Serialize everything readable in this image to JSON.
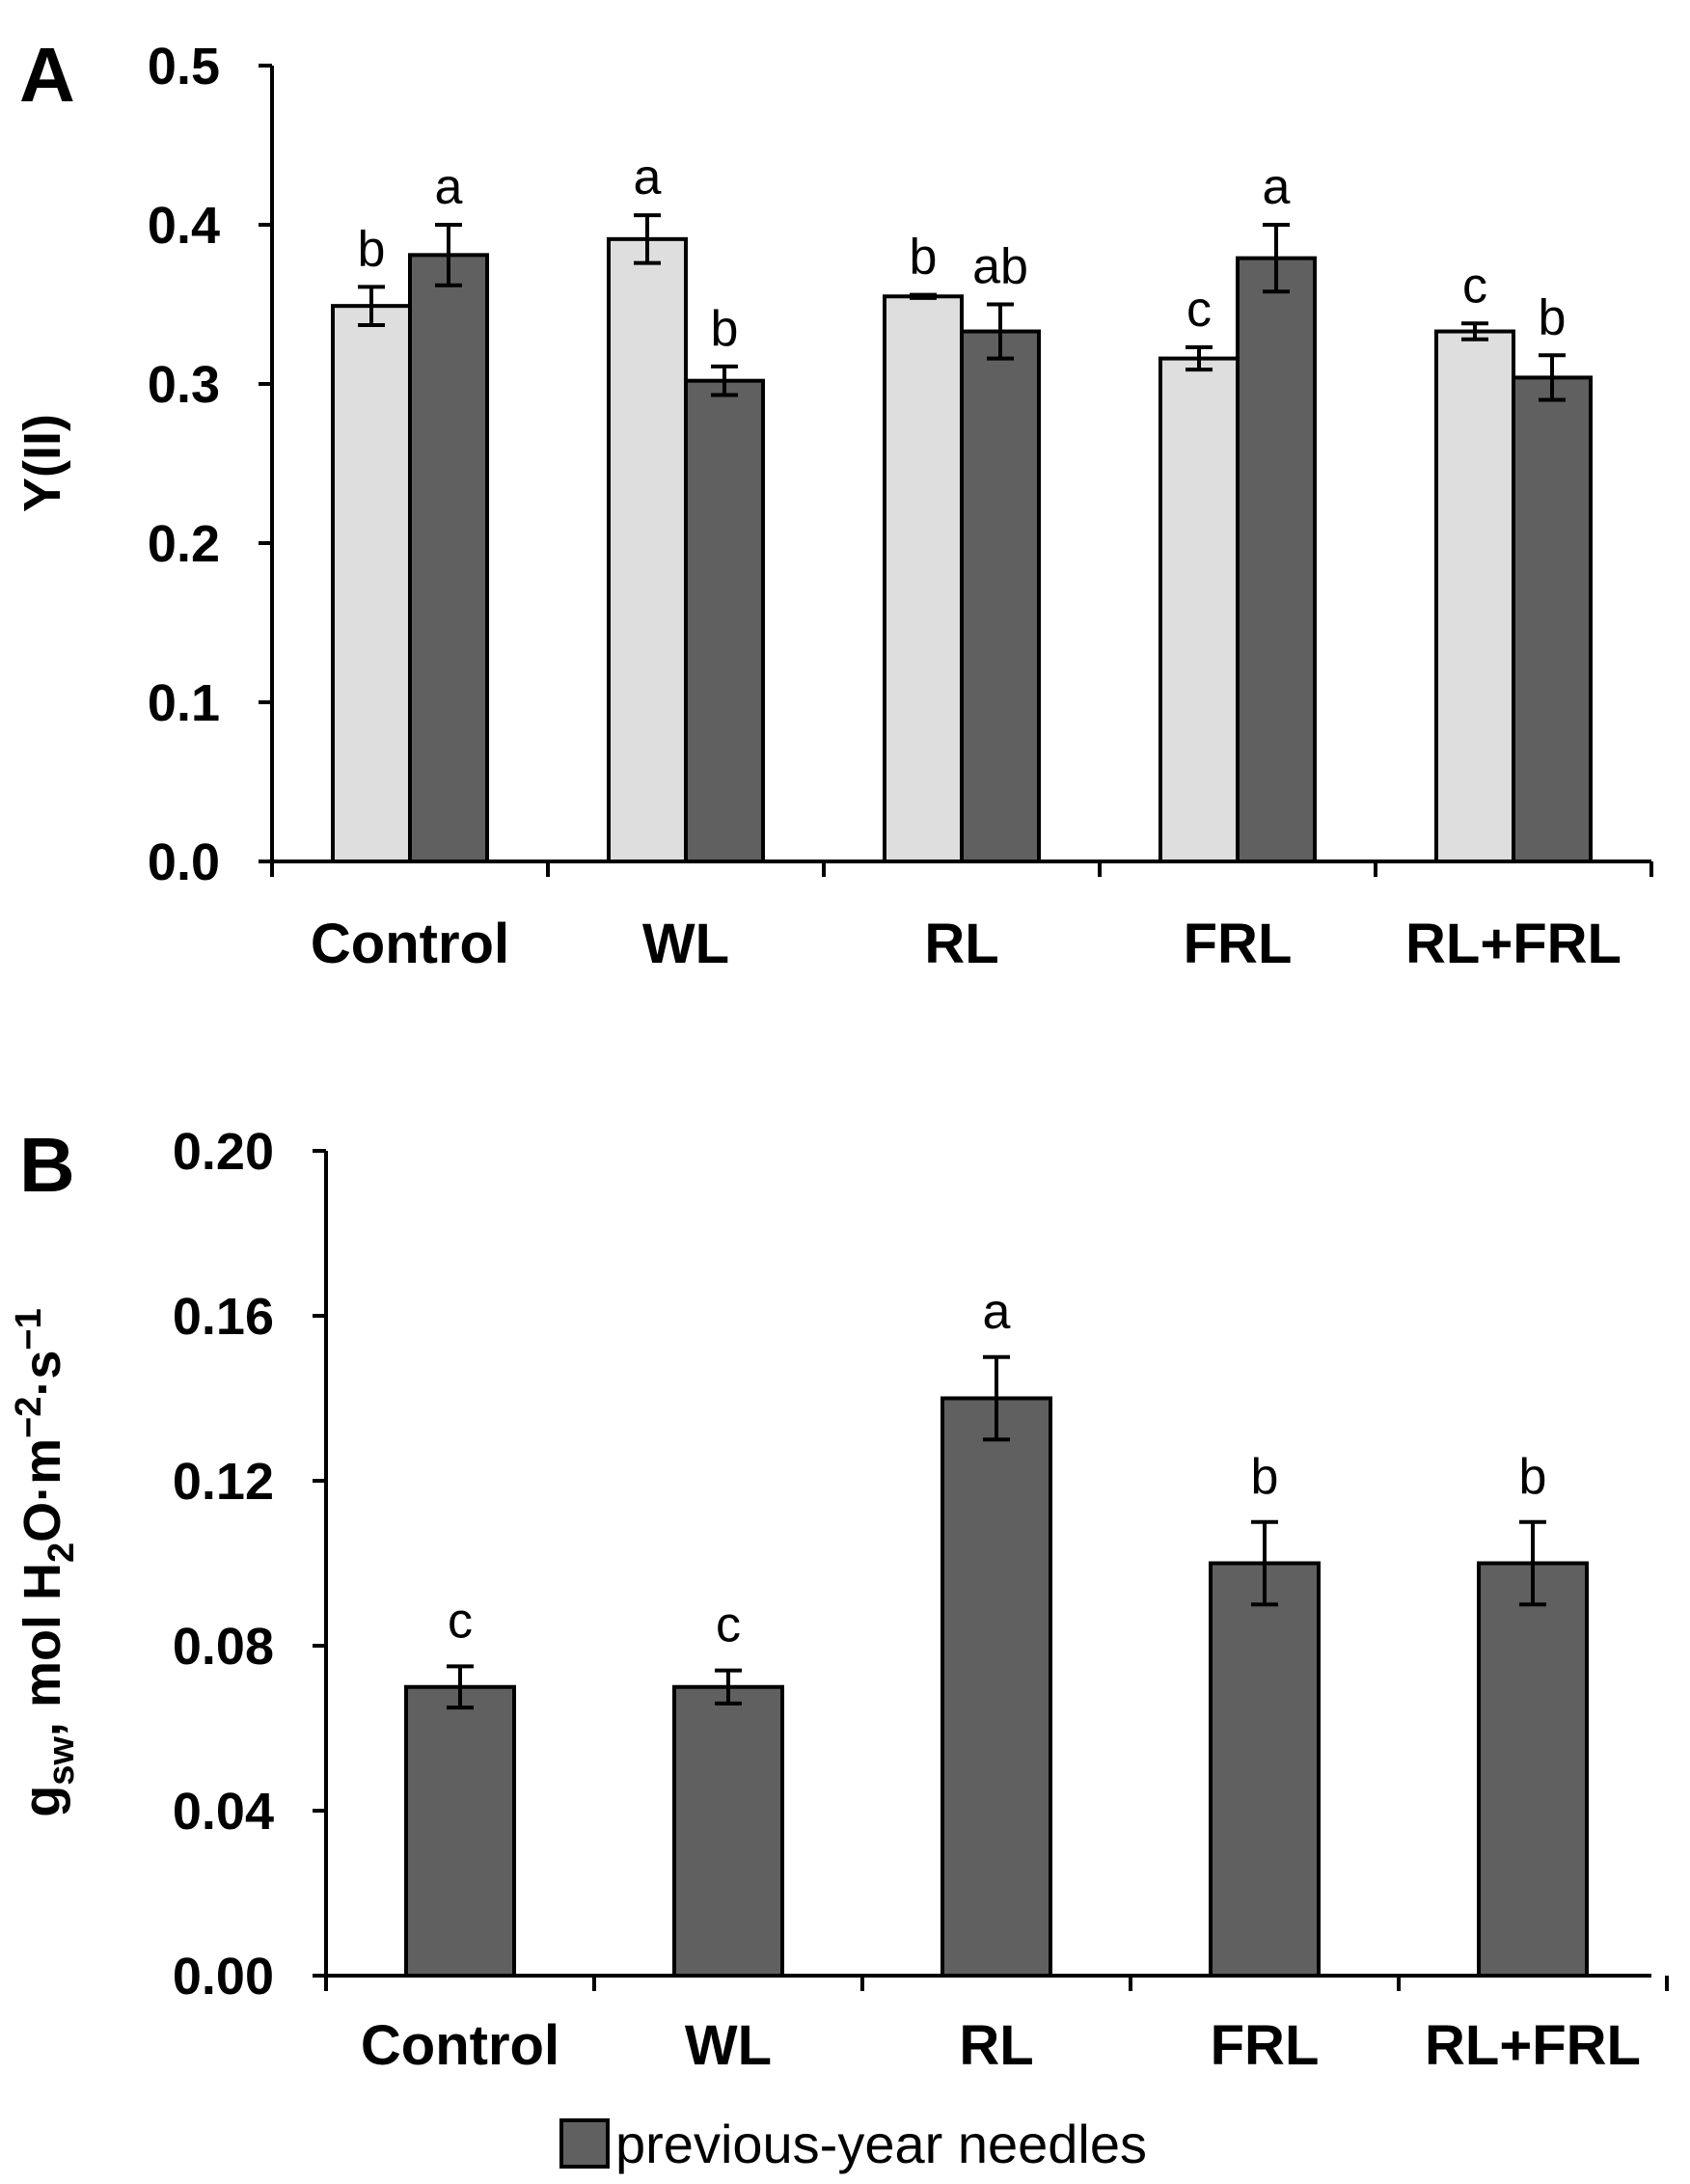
{
  "chart_data": [
    {
      "panel": "A",
      "type": "bar",
      "ylabel": "Y(II)",
      "ylim": [
        0,
        0.5
      ],
      "yticks": [
        "0.0",
        "0.1",
        "0.2",
        "0.3",
        "0.4",
        "0.5"
      ],
      "categories": [
        "Control",
        "WL",
        "RL",
        "FRL",
        "RL+FRL"
      ],
      "series": [
        {
          "color": "#dedede",
          "values": [
            0.349,
            0.391,
            0.355,
            0.316,
            0.333
          ],
          "errors": [
            0.012,
            0.015,
            0.001,
            0.007,
            0.005
          ],
          "letters": [
            "b",
            "a",
            "b",
            "c",
            "c"
          ]
        },
        {
          "name": "previous-year needles",
          "color": "#606060",
          "values": [
            0.381,
            0.302,
            0.333,
            0.379,
            0.304
          ],
          "errors": [
            0.019,
            0.009,
            0.017,
            0.021,
            0.014
          ],
          "letters": [
            "a",
            "b",
            "ab",
            "a",
            "b"
          ]
        }
      ]
    },
    {
      "panel": "B",
      "type": "bar",
      "ylabel_main": "g",
      "ylabel_sub": "sw",
      "ylabel_mid": ", mol H",
      "ylabel_sub2": "2",
      "ylabel_mid2": "O·m",
      "ylabel_sup": "−2",
      "ylabel_mid3": "·s",
      "ylabel_sup2": "−1",
      "ylim": [
        0,
        0.2
      ],
      "yticks": [
        "0.00",
        "0.04",
        "0.08",
        "0.12",
        "0.16",
        "0.20"
      ],
      "categories": [
        "Control",
        "WL",
        "RL",
        "FRL",
        "RL+FRL"
      ],
      "series": [
        {
          "name": "previous-year needles",
          "color": "#606060",
          "values": [
            0.07,
            0.07,
            0.14,
            0.1,
            0.1
          ],
          "errors": [
            0.005,
            0.004,
            0.01,
            0.01,
            0.01
          ],
          "letters": [
            "c",
            "c",
            "a",
            "b",
            "b"
          ]
        }
      ]
    }
  ],
  "legend": {
    "label": "previous-year needles",
    "color": "#606060"
  }
}
